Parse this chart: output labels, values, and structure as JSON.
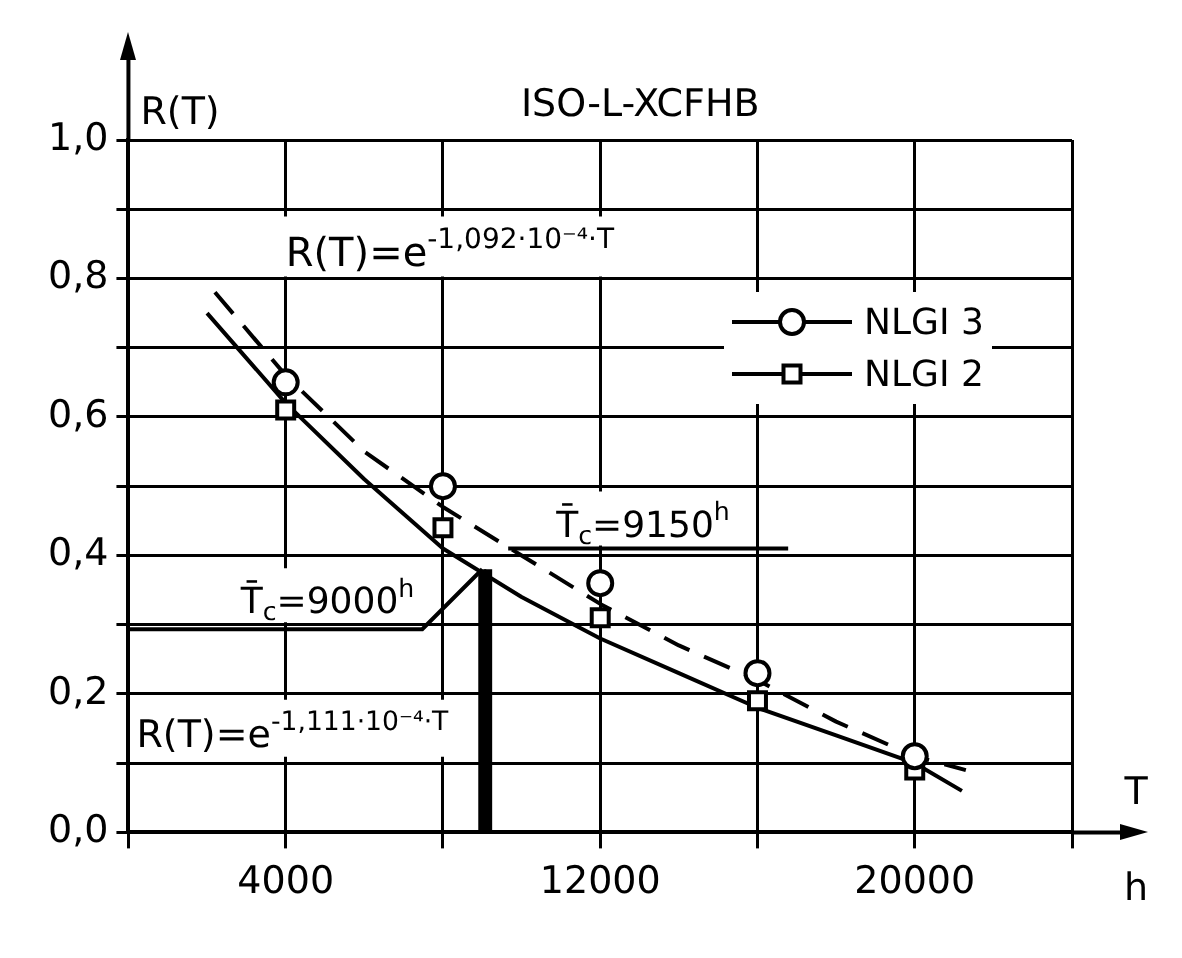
{
  "chart_data": {
    "type": "scatter",
    "title": "ISO-L-XCFHB",
    "xlabel": "T",
    "ylabel": "R(T)",
    "xlim": [
      0,
      24000
    ],
    "xticks": [
      {
        "value": 0,
        "label": null
      },
      4000,
      {
        "value": 8000,
        "label": null
      },
      12000,
      {
        "value": 16000,
        "label": null
      },
      20000,
      {
        "value": 24000,
        "label": null
      }
    ],
    "ylim": [
      0,
      1
    ],
    "yticks": [
      {
        "value": 0,
        "label": "0,0"
      },
      {
        "value": 0.1,
        "label": null
      },
      {
        "value": 0.2,
        "label": "0,2"
      },
      {
        "value": 0.3,
        "label": null
      },
      {
        "value": 0.4,
        "label": "0,4"
      },
      {
        "value": 0.5,
        "label": null
      },
      {
        "value": 0.6,
        "label": "0,6"
      },
      {
        "value": 0.7,
        "label": null
      },
      {
        "value": 0.8,
        "label": "0,8"
      },
      {
        "value": 0.9,
        "label": null
      },
      {
        "value": 1,
        "label": "1,0"
      }
    ],
    "grid": true,
    "legend": "top right",
    "series": [
      {
        "name": "NLGI 3",
        "color": "#000000",
        "marker": "circle",
        "x": [
          4000,
          8000,
          12000,
          16000,
          20000
        ],
        "values": [
          0.65,
          0.5,
          0.36,
          0.23,
          0.11
        ]
      },
      {
        "name": "NLGI 2",
        "color": "#000000",
        "marker": "square",
        "x": [
          4000,
          8000,
          12000,
          16000,
          20000
        ],
        "values": [
          0.61,
          0.44,
          0.31,
          0.19,
          0.09
        ]
      },
      {
        "type": "line",
        "color": "#000000",
        "line_style": "dashed",
        "x": [
          2200,
          4000,
          6000,
          8000,
          10000,
          12000,
          14000,
          16000,
          18000,
          20000,
          21300
        ],
        "values": [
          0.78,
          0.66,
          0.55,
          0.47,
          0.4,
          0.33,
          0.27,
          0.22,
          0.16,
          0.11,
          0.09
        ]
      },
      {
        "type": "line",
        "color": "#000000",
        "line_style": "solid",
        "x": [
          2000,
          4000,
          6000,
          8000,
          10000,
          12000,
          14000,
          16000,
          18000,
          20000,
          21200
        ],
        "values": [
          0.75,
          0.62,
          0.51,
          0.41,
          0.34,
          0.28,
          0.23,
          0.18,
          0.14,
          0.1,
          0.06
        ]
      }
    ],
    "ref_lines": [
      {
        "axis": "x",
        "value": 9000
      },
      {
        "axis": "x",
        "value": 9150
      }
    ],
    "annotations": [
      "R(T)=e$^{-1,092·10⁻⁴·T}$",
      "R(T)=e$^{-1,111·10⁻⁴·T}$",
      "h",
      {
        "text": "T̄$_{c}$=9000$^{h}$",
        "x": 9000,
        "y": 0.38
      },
      {
        "text": "T̄$_{c}$=9150$^{h}$",
        "x": 9150,
        "y": 0.41
      }
    ]
  }
}
